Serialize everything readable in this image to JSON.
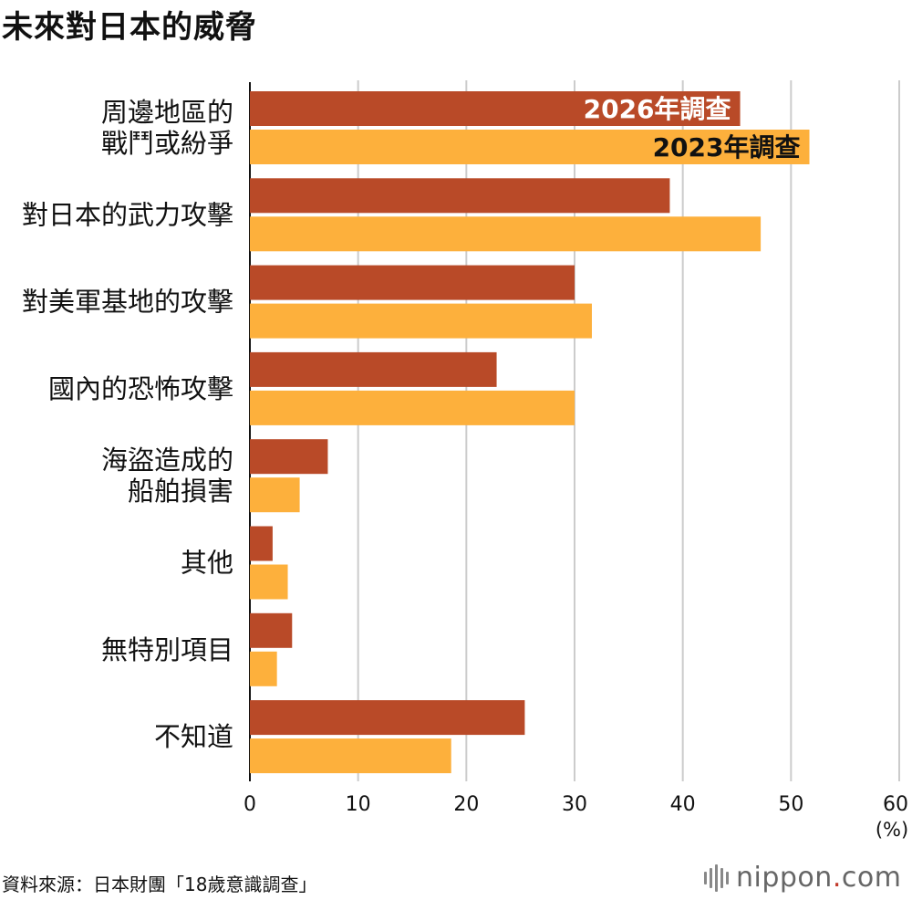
{
  "title": "未來對日本的威脅",
  "source": "資料來源：日本財團「18歲意識調查」",
  "logo": {
    "name": "nippon",
    "dot": ".",
    "suffix": "com"
  },
  "colors": {
    "series2026": "#b94a28",
    "series2023": "#fdb03c",
    "grid": "#cccccc",
    "axis": "#111111"
  },
  "chart_data": {
    "type": "bar",
    "orientation": "horizontal",
    "title": "未來對日本的威脅",
    "categories": [
      [
        "周邊地區的",
        "戰鬥或紛爭"
      ],
      [
        "對日本的武力攻擊"
      ],
      [
        "對美軍基地的攻擊"
      ],
      [
        "國內的恐怖攻擊"
      ],
      [
        "海盜造成的",
        "船舶損害"
      ],
      [
        "其他"
      ],
      [
        "無特別項目"
      ],
      [
        "不知道"
      ]
    ],
    "series": [
      {
        "name": "2026年調查",
        "values": [
          45.3,
          38.8,
          30.0,
          22.8,
          7.2,
          2.1,
          3.9,
          25.4
        ]
      },
      {
        "name": "2023年調查",
        "values": [
          51.7,
          47.2,
          31.6,
          30.0,
          4.6,
          3.5,
          2.5,
          18.6
        ]
      }
    ],
    "xlim": [
      0,
      60
    ],
    "xticks": [
      "0",
      "10",
      "20",
      "30",
      "40",
      "50",
      "60"
    ],
    "unit_label": "(%)",
    "grid": true,
    "legend": "inside-bars"
  }
}
